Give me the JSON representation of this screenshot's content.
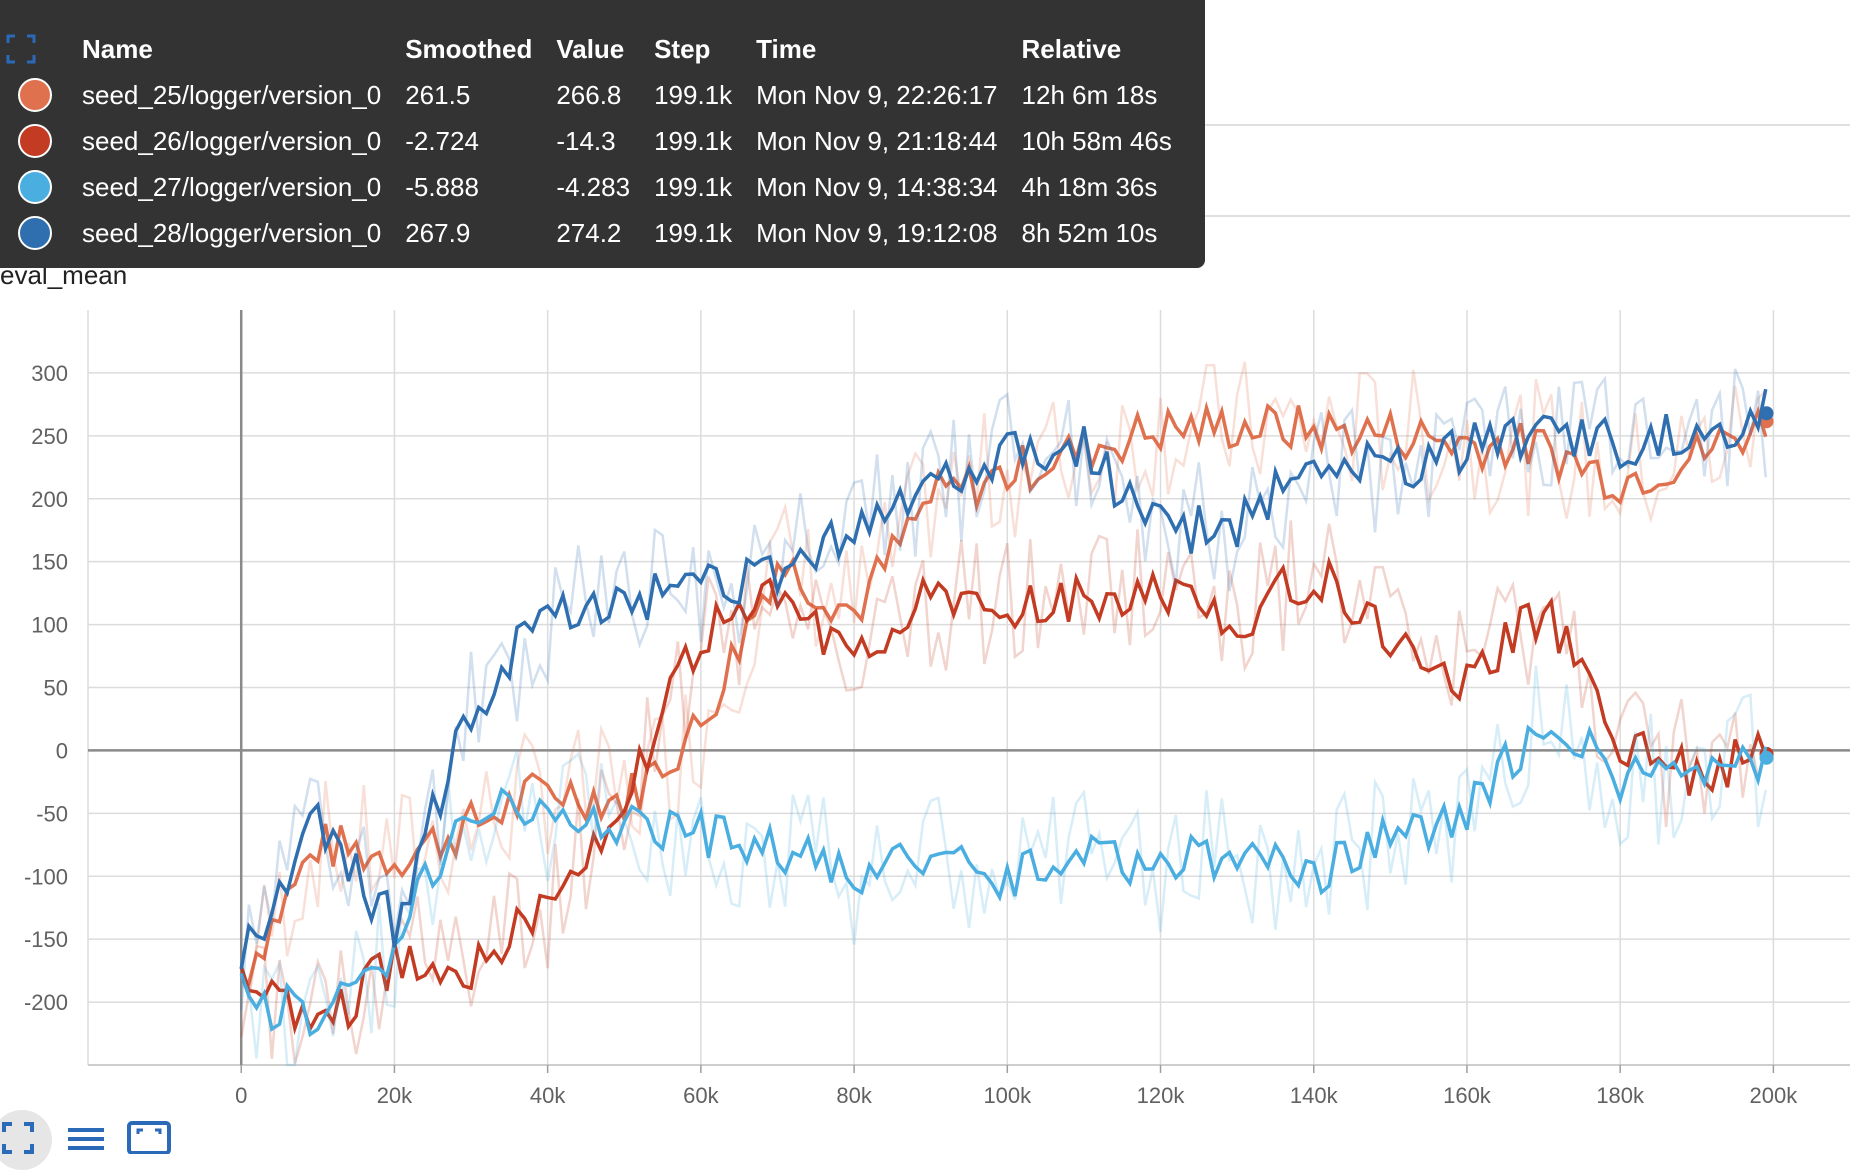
{
  "top_panel": {
    "tick_labels": [
      "0",
      "40k",
      "80k",
      "120k",
      "160k",
      "200k"
    ]
  },
  "panel_labels": {
    "partial": "val_mean",
    "main": "eval_mean"
  },
  "tooltip": {
    "headers": [
      "Name",
      "Smoothed",
      "Value",
      "Step",
      "Time",
      "Relative"
    ],
    "rows": [
      {
        "color": "#e0714f",
        "name": "seed_25/logger/version_0",
        "smoothed": "261.5",
        "value": "266.8",
        "step": "199.1k",
        "time": "Mon Nov 9, 22:26:17",
        "relative": "12h 6m 18s"
      },
      {
        "color": "#c23b22",
        "name": "seed_26/logger/version_0",
        "smoothed": "-2.724",
        "value": "-14.3",
        "step": "199.1k",
        "time": "Mon Nov 9, 21:18:44",
        "relative": "10h 58m 46s"
      },
      {
        "color": "#4aaee0",
        "name": "seed_27/logger/version_0",
        "smoothed": "-5.888",
        "value": "-4.283",
        "step": "199.1k",
        "time": "Mon Nov 9, 14:38:34",
        "relative": "4h 18m 36s"
      },
      {
        "color": "#2f6fb0",
        "name": "seed_28/logger/version_0",
        "smoothed": "267.9",
        "value": "274.2",
        "step": "199.1k",
        "time": "Mon Nov 9, 19:12:08",
        "relative": "8h 52m 10s"
      }
    ]
  },
  "toolbar": {
    "icons": [
      "fit-domain-icon",
      "toggle-log-icon",
      "expand-icon"
    ]
  },
  "chart_data": {
    "type": "line",
    "title": "eval_mean",
    "xlabel": "",
    "ylabel": "",
    "xlim": [
      -20000,
      210000
    ],
    "ylim": [
      -250,
      350
    ],
    "x_ticks": [
      0,
      20000,
      40000,
      60000,
      80000,
      100000,
      120000,
      140000,
      160000,
      180000,
      200000
    ],
    "x_tick_labels": [
      "0",
      "20k",
      "40k",
      "60k",
      "80k",
      "100k",
      "120k",
      "140k",
      "160k",
      "180k",
      "200k"
    ],
    "y_ticks": [
      -200,
      -150,
      -100,
      -50,
      0,
      50,
      100,
      150,
      200,
      250,
      300
    ],
    "y_tick_labels": [
      "-200",
      "-150",
      "-100",
      "-50",
      "0",
      "50",
      "100",
      "150",
      "200",
      "250",
      "300"
    ],
    "grid": true,
    "x": [
      0,
      10000,
      20000,
      30000,
      40000,
      50000,
      60000,
      70000,
      80000,
      90000,
      100000,
      110000,
      120000,
      130000,
      140000,
      150000,
      160000,
      170000,
      180000,
      190000,
      199100
    ],
    "series": [
      {
        "name": "seed_25/logger/version_0",
        "color": "#e0714f",
        "values": [
          -180,
          -75,
          -85,
          -60,
          -30,
          -40,
          20,
          150,
          110,
          200,
          220,
          240,
          255,
          258,
          255,
          252,
          245,
          240,
          215,
          235,
          261.5
        ]
      },
      {
        "name": "seed_26/logger/version_0",
        "color": "#c23b22",
        "values": [
          -180,
          -220,
          -170,
          -170,
          -120,
          -40,
          90,
          120,
          80,
          120,
          110,
          120,
          125,
          105,
          140,
          90,
          55,
          110,
          10,
          -20,
          -2.724
        ]
      },
      {
        "name": "seed_27/logger/version_0",
        "color": "#4aaee0",
        "values": [
          -195,
          -215,
          -155,
          -40,
          -50,
          -55,
          -65,
          -80,
          -100,
          -90,
          -100,
          -80,
          -90,
          -80,
          -100,
          -70,
          -45,
          25,
          -20,
          -20,
          -5.888
        ]
      },
      {
        "name": "seed_28/logger/version_0",
        "color": "#2f6fb0",
        "values": [
          -160,
          -60,
          -140,
          30,
          110,
          120,
          130,
          140,
          180,
          210,
          235,
          240,
          175,
          175,
          235,
          225,
          240,
          255,
          245,
          255,
          267.9
        ]
      }
    ]
  }
}
